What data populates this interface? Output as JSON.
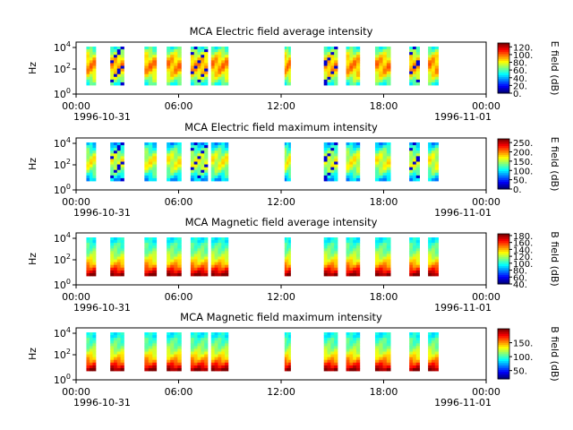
{
  "chart_data": [
    {
      "type": "heatmap",
      "title": "MCA  Electric field average intensity",
      "ylabel": "Hz",
      "colorbar_label": "E field (dB)",
      "colorbar_ticks": [
        "0.",
        "20.",
        "40.",
        "60.",
        "80.",
        "100.",
        "120."
      ],
      "clim": [
        0,
        130
      ],
      "palette": "blues",
      "yscale": "log",
      "y_ticks": [
        {
          "base": "10",
          "exp": "0"
        },
        {
          "base": "10",
          "exp": "2"
        },
        {
          "base": "10",
          "exp": "4"
        }
      ],
      "x_ticks": [
        "00:00",
        "06:00",
        "12:00",
        "18:00",
        "00:00"
      ],
      "x_start_date": "1996-10-31",
      "x_end_date": "1996-11-01"
    },
    {
      "type": "heatmap",
      "title": "MCA  Electric field maximum intensity",
      "ylabel": "Hz",
      "colorbar_label": "E field (dB)",
      "colorbar_ticks": [
        "0.",
        "50.",
        "100.",
        "150.",
        "200.",
        "250."
      ],
      "clim": [
        0,
        270
      ],
      "palette": "blues",
      "yscale": "log",
      "y_ticks": [
        {
          "base": "10",
          "exp": "0"
        },
        {
          "base": "10",
          "exp": "2"
        },
        {
          "base": "10",
          "exp": "4"
        }
      ],
      "x_ticks": [
        "00:00",
        "06:00",
        "12:00",
        "18:00",
        "00:00"
      ],
      "x_start_date": "1996-10-31",
      "x_end_date": "1996-11-01"
    },
    {
      "type": "heatmap",
      "title": "MCA  Magnetic field average intensity",
      "ylabel": "Hz",
      "colorbar_label": "B field (dB)",
      "colorbar_ticks": [
        "40.",
        "60.",
        "80.",
        "100.",
        "120.",
        "140.",
        "160.",
        "180."
      ],
      "clim": [
        40,
        185
      ],
      "palette": "warm",
      "yscale": "log",
      "y_ticks": [
        {
          "base": "10",
          "exp": "0"
        },
        {
          "base": "10",
          "exp": "2"
        },
        {
          "base": "10",
          "exp": "4"
        }
      ],
      "x_ticks": [
        "00:00",
        "06:00",
        "12:00",
        "18:00",
        "00:00"
      ],
      "x_start_date": "1996-10-31",
      "x_end_date": "1996-11-01"
    },
    {
      "type": "heatmap",
      "title": "MCA  Magnetic field maximum intensity",
      "ylabel": "Hz",
      "colorbar_label": "B field (dB)",
      "colorbar_ticks": [
        "50.",
        "100.",
        "150."
      ],
      "clim": [
        20,
        200
      ],
      "palette": "warm",
      "yscale": "log",
      "y_ticks": [
        {
          "base": "10",
          "exp": "0"
        },
        {
          "base": "10",
          "exp": "2"
        },
        {
          "base": "10",
          "exp": "4"
        }
      ],
      "x_ticks": [
        "00:00",
        "06:00",
        "12:00",
        "18:00",
        "00:00"
      ],
      "x_start_date": "1996-10-31",
      "x_end_date": "1996-11-01"
    }
  ]
}
